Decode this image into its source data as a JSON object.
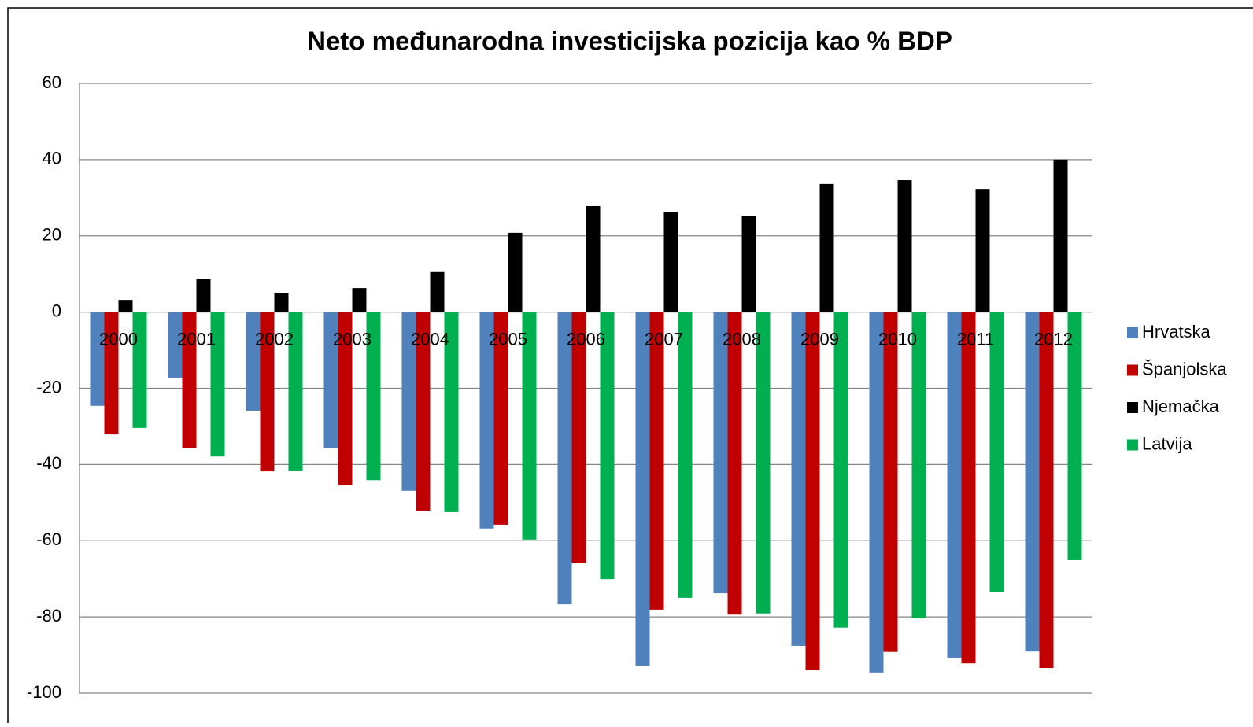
{
  "chart_data": {
    "type": "bar",
    "title": "Neto međunarodna investicijska pozicija kao % BDP",
    "categories": [
      "2000",
      "2001",
      "2002",
      "2003",
      "2004",
      "2005",
      "2006",
      "2007",
      "2008",
      "2009",
      "2010",
      "2011",
      "2012"
    ],
    "series": [
      {
        "name": "Hrvatska",
        "color": "#4f81bd",
        "values": [
          -24.6,
          -17.2,
          -25.9,
          -35.6,
          -46.9,
          -56.8,
          -76.7,
          -92.8,
          -73.8,
          -87.6,
          -94.6,
          -90.7,
          -89.1
        ]
      },
      {
        "name": "Španjolska",
        "color": "#c00000",
        "values": [
          -32.1,
          -35.6,
          -41.8,
          -45.5,
          -52.1,
          -55.8,
          -65.9,
          -78.1,
          -79.4,
          -94.0,
          -89.2,
          -92.2,
          -93.4
        ]
      },
      {
        "name": "Njemačka",
        "color": "#000000",
        "values": [
          3.2,
          8.6,
          4.9,
          6.3,
          10.5,
          20.8,
          27.8,
          26.3,
          25.3,
          33.6,
          34.6,
          32.3,
          40
        ]
      },
      {
        "name": "Latvija",
        "color": "#00b050",
        "values": [
          -30.4,
          -37.9,
          -41.6,
          -44.1,
          -52.5,
          -59.7,
          -70.1,
          -75.0,
          -79.1,
          -82.8,
          -80.4,
          -73.4,
          -65.1
        ]
      }
    ],
    "ylim": [
      -100,
      60
    ],
    "yticks": [
      -100,
      -80,
      -60,
      -40,
      -20,
      0,
      20,
      40,
      60
    ],
    "grid": true,
    "legend": "right"
  }
}
